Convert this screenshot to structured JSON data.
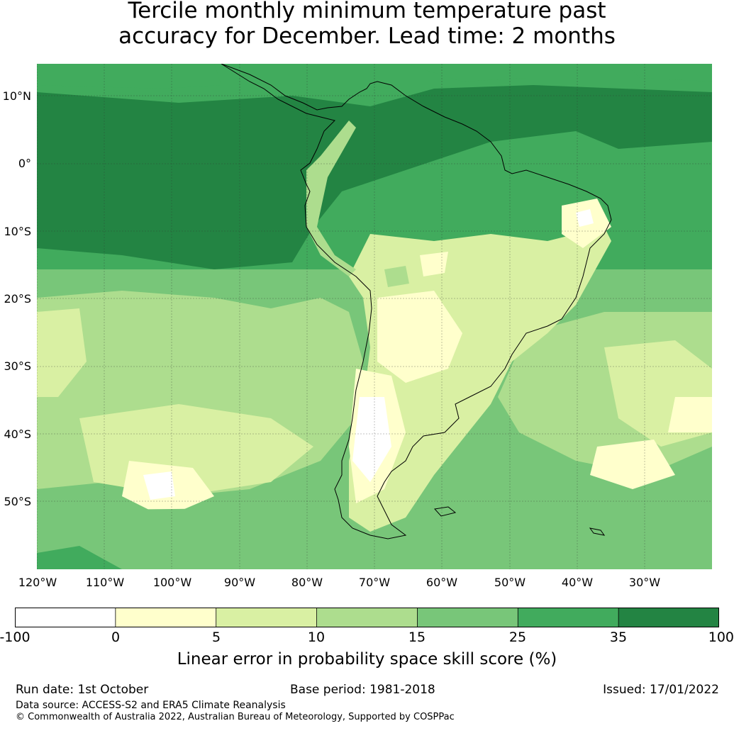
{
  "title": {
    "line1": "Tercile monthly minimum temperature past",
    "line2": "accuracy for December. Lead time: 2 months"
  },
  "map": {
    "region": "South America",
    "lat_labels": [
      "10°N",
      "0°",
      "10°S",
      "20°S",
      "30°S",
      "40°S",
      "50°S"
    ],
    "lon_labels": [
      "120°W",
      "110°W",
      "100°W",
      "90°W",
      "80°W",
      "70°W",
      "60°W",
      "50°W",
      "40°W",
      "30°W"
    ]
  },
  "colorbar": {
    "ticks": [
      "-100",
      "0",
      "5",
      "10",
      "15",
      "25",
      "35",
      "100"
    ],
    "colors": [
      "#ffffff",
      "#ffffcc",
      "#d9f0a3",
      "#addd8e",
      "#78c679",
      "#41ab5d",
      "#238443"
    ],
    "label": "Linear error in probability space skill score (%)"
  },
  "footer": {
    "run_date": "Run date: 1st October",
    "base_period": "Base period: 1981-2018",
    "issued": "Issued: 17/01/2022",
    "data_source": "Data source: ACCESS-S2 and ERA5 Climate Reanalysis",
    "copyright": "© Commonwealth of Australia 2022, Australian Bureau of Meteorology, Supported by COSPPac"
  }
}
